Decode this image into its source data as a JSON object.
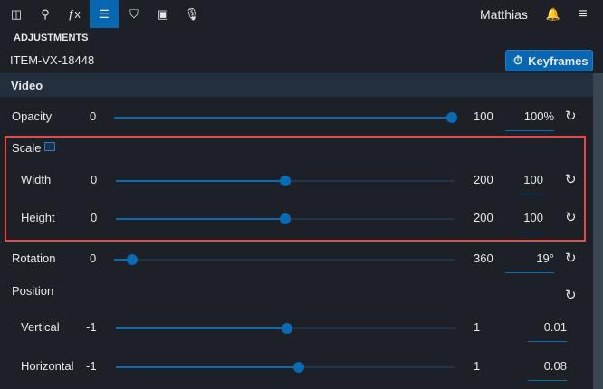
{
  "topbar": {
    "icons": [
      "filmstrip-icon",
      "search-icon",
      "effects-icon",
      "adjustments-icon",
      "shield-icon",
      "media-bin-icon",
      "microphone-icon"
    ],
    "active_index": 3,
    "user": "Matthias"
  },
  "panel": {
    "title": "ADJUSTMENTS",
    "item_id": "ITEM-VX-18448",
    "keyframes_label": "Keyframes",
    "section": "Video"
  },
  "rows": {
    "opacity": {
      "label": "Opacity",
      "min": "0",
      "max": "100",
      "value": "100%",
      "level": 1.0
    },
    "scale": {
      "label": "Scale"
    },
    "width": {
      "label": "Width",
      "min": "0",
      "max": "200",
      "value": "100",
      "level": 0.5
    },
    "height": {
      "label": "Height",
      "min": "0",
      "max": "200",
      "value": "100",
      "level": 0.5
    },
    "rotation": {
      "label": "Rotation",
      "min": "0",
      "max": "360",
      "value": "19°",
      "level": 0.053
    },
    "position": {
      "label": "Position"
    },
    "vertical": {
      "label": "Vertical",
      "min": "-1",
      "max": "1",
      "value": "0.01",
      "level": 0.505
    },
    "horizontal": {
      "label": "Horizontal",
      "min": "-1",
      "max": "1",
      "value": "0.08",
      "level": 0.54
    }
  },
  "colors": {
    "accent": "#0a6ab4",
    "highlight": "#e84848"
  }
}
